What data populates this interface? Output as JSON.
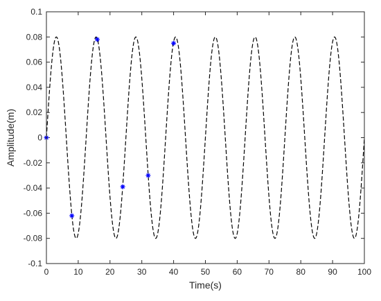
{
  "chart_data": {
    "type": "line",
    "title": "",
    "xlabel": "Time(s)",
    "ylabel": "Amplitude(m)",
    "xlim": [
      0,
      100
    ],
    "ylim": [
      -0.1,
      0.1
    ],
    "xticks": [
      "0",
      "10",
      "20",
      "30",
      "40",
      "50",
      "60",
      "70",
      "80",
      "90",
      "100"
    ],
    "yticks": [
      "-0.1",
      "-0.08",
      "-0.06",
      "-0.04",
      "-0.02",
      "0",
      "0.02",
      "0.04",
      "0.06",
      "0.08",
      "0.1"
    ],
    "grid": false,
    "legend": "none",
    "series": [
      {
        "style": "dashed line",
        "color": "#000000",
        "function": "0.08*sin(2*pi*t/12.5)",
        "amplitude": 0.08,
        "period": 12.5
      },
      {
        "style": "asterisk markers",
        "color": "#0000ff",
        "x": [
          0,
          8,
          16,
          24,
          32,
          40
        ],
        "y": [
          0.0,
          -0.062,
          0.078,
          -0.039,
          -0.03,
          0.075
        ]
      }
    ]
  }
}
